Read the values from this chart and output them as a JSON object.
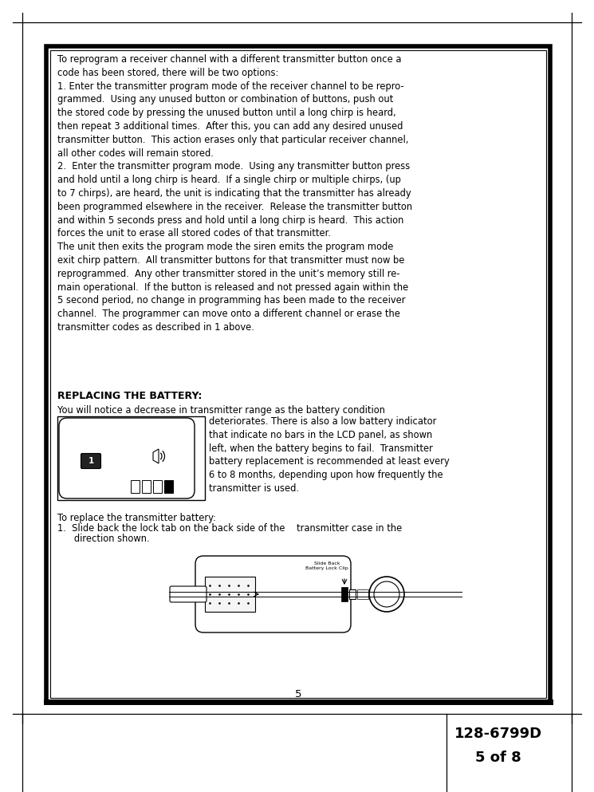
{
  "bg_color": "#ffffff",
  "page_number": "5",
  "body_text_1": "To reprogram a receiver channel with a different transmitter button once a\ncode has been stored, there will be two options:\n1. Enter the transmitter program mode of the receiver channel to be repro-\ngrammed.  Using any unused button or combination of buttons, push out\nthe stored code by pressing the unused button until a long chirp is heard,\nthen repeat 3 additional times.  After this, you can add any desired unused\ntransmitter button.  This action erases only that particular receiver channel,\nall other codes will remain stored.\n2.  Enter the transmitter program mode.  Using any transmitter button press\nand hold until a long chirp is heard.  If a single chirp or multiple chirps, (up\nto 7 chirps), are heard, the unit is indicating that the transmitter has already\nbeen programmed elsewhere in the receiver.  Release the transmitter button\nand within 5 seconds press and hold until a long chirp is heard.  This action\nforces the unit to erase all stored codes of that transmitter.\nThe unit then exits the program mode the siren emits the program mode\nexit chirp pattern.  All transmitter buttons for that transmitter must now be\nreprogrammed.  Any other transmitter stored in the unit’s memory still re-\nmain operational.  If the button is released and not pressed again within the\n5 second period, no change in programming has been made to the receiver\nchannel.  The programmer can move onto a different channel or erase the\ntransmitter codes as described in 1 above.",
  "section_heading": "REPLACING THE BATTERY:",
  "notice_line": "You will notice a decrease in transmitter range as the battery condition",
  "right_text": "deteriorates. There is also a low battery indicator\nthat indicate no bars in the LCD panel, as shown\nleft, when the battery begins to fail.  Transmitter\nbattery replacement is recommended at least every\n6 to 8 months, depending upon how frequently the\ntransmitter is used.",
  "replace_line1": "To replace the transmitter battery:",
  "replace_line2": "1.  Slide back the lock tab on the back side of the    transmitter case in the",
  "replace_line3": "   direction shown.",
  "slide_label": "Slide Back\nBattery Lock Clip",
  "footer_title_1": "128-6799D",
  "footer_title_2": "5 of 8",
  "font_size_body": 8.3,
  "font_size_heading": 9.0,
  "font_size_page_num": 9.5,
  "font_size_footer": 13.0,
  "font_size_slide_label": 4.5
}
